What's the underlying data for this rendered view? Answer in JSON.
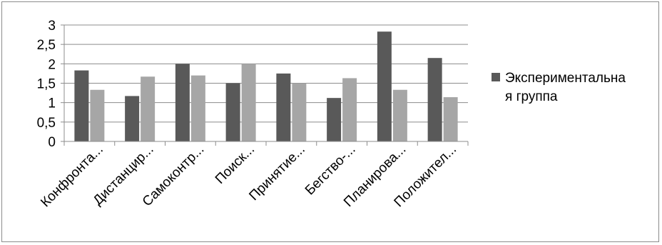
{
  "chart_data": {
    "type": "bar",
    "title": "",
    "xlabel": "",
    "ylabel": "",
    "ylim": [
      0,
      3
    ],
    "yticks": [
      "0",
      "0,5",
      "1",
      "1,5",
      "2",
      "2,5",
      "3"
    ],
    "grid": true,
    "legend_position": "right",
    "categories": [
      "Конфронта...",
      "Дистанцир...",
      "Самоконтр...",
      "Поиск...",
      "Принятие...",
      "Бегство-...",
      "Планирова...",
      "Положител..."
    ],
    "series": [
      {
        "name": "Экспериментальная группа",
        "legend_lines": [
          "Экспериментальна",
          "я группа"
        ],
        "color": "#595959",
        "values": [
          1.83,
          1.17,
          2.0,
          1.5,
          1.75,
          1.12,
          2.83,
          2.15
        ]
      },
      {
        "color": "#a6a6a6",
        "values": [
          1.33,
          1.67,
          1.7,
          2.0,
          1.5,
          1.63,
          1.33,
          1.14
        ]
      }
    ]
  }
}
